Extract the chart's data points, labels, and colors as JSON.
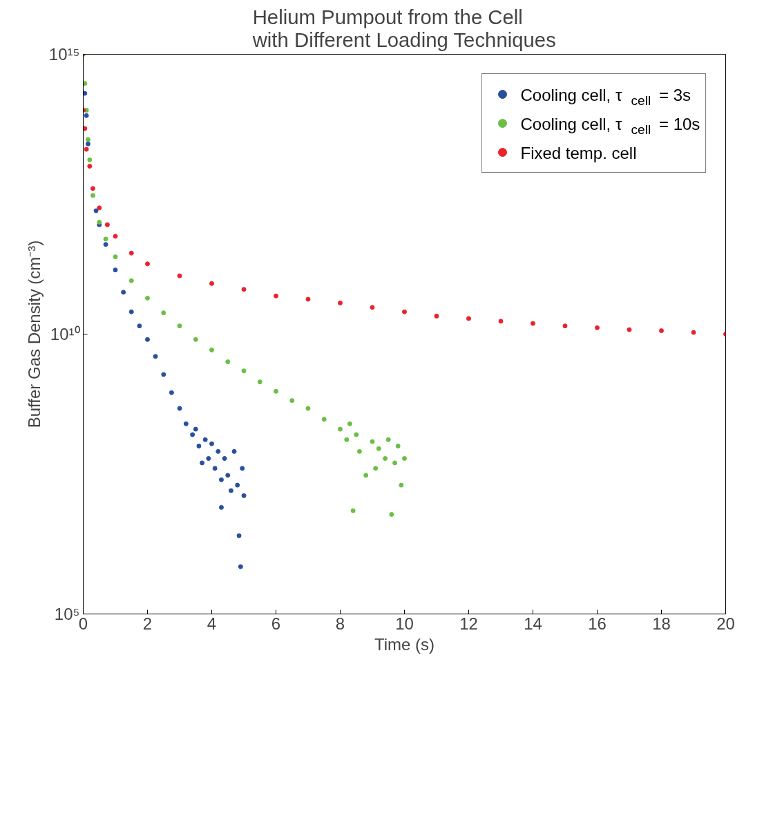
{
  "chart_data": {
    "type": "scatter",
    "title": "Helium Pumpout from the Cell\nwith Different Loading Techniques",
    "xlabel": "Time (s)",
    "ylabel": "Buffer Gas Density (cm⁻³)",
    "xlim": [
      0,
      20
    ],
    "xticks": [
      0,
      2,
      4,
      6,
      8,
      10,
      12,
      14,
      16,
      18,
      20
    ],
    "ylim": [
      100000.0,
      1000000000000000.0
    ],
    "yticks": [
      {
        "value": 100000.0,
        "label": "10⁵"
      },
      {
        "value": 10000000000.0,
        "label": "10¹⁰"
      },
      {
        "value": 1000000000000000.0,
        "label": "10¹⁵"
      }
    ],
    "log": "y",
    "grid": false,
    "legend": "top right",
    "marker": "circle",
    "series": [
      {
        "name": "Cooling cell, τ$_{cell}$ = 3s",
        "color": "#2a4f9f",
        "x": [
          0.05,
          0.1,
          0.15,
          0.4,
          0.5,
          0.7,
          1.0,
          1.25,
          1.5,
          1.75,
          2.0,
          2.25,
          2.5,
          2.75,
          3.0,
          3.2,
          3.4,
          3.5,
          3.6,
          3.7,
          3.8,
          3.9,
          4.0,
          4.1,
          4.2,
          4.3,
          4.4,
          4.5,
          4.6,
          4.7,
          4.8,
          4.85,
          4.9,
          5.0,
          4.95,
          4.3
        ],
        "values": [
          200000000000000.0,
          80000000000000.0,
          25000000000000.0,
          1600000000000.0,
          900000000000.0,
          400000000000.0,
          140000000000.0,
          56000000000.0,
          25000000000.0,
          14000000000.0,
          8000000000.0,
          4000000000.0,
          1900000000.0,
          900000000.0,
          470000000.0,
          250000000.0,
          160000000.0,
          200000000.0,
          100000000.0,
          50000000.0,
          130000000.0,
          60000000.0,
          110000000.0,
          40000000.0,
          80000000.0,
          25000000.0,
          60000000.0,
          30000000.0,
          16000000.0,
          80000000.0,
          20000000.0,
          2500000.0,
          700000.0,
          13000000.0,
          40000000.0,
          8000000.0
        ]
      },
      {
        "name": "Cooling cell, τ$_{cell}$ = 10s",
        "color": "#6abf45",
        "x": [
          0,
          0.05,
          0.1,
          0.15,
          0.2,
          0.3,
          0.5,
          0.7,
          1,
          1.5,
          2,
          2.5,
          3,
          3.5,
          4,
          4.5,
          5,
          5.5,
          6,
          6.5,
          7,
          7.5,
          8,
          8.2,
          8.3,
          8.4,
          8.5,
          8.6,
          8.8,
          9.0,
          9.1,
          9.2,
          9.4,
          9.5,
          9.6,
          9.7,
          9.8,
          9.9,
          10
        ],
        "values": [
          1000000000000000.0,
          300000000000000.0,
          100000000000000.0,
          30000000000000.0,
          13000000000000.0,
          3000000000000.0,
          1000000000000.0,
          500000000000.0,
          240000000000.0,
          90000000000.0,
          44000000000.0,
          24000000000.0,
          14000000000.0,
          8000000000.0,
          5200000000.0,
          3200000000.0,
          2200000000.0,
          1400000000.0,
          950000000.0,
          650000000.0,
          470000000.0,
          300000000.0,
          200000000.0,
          130000000.0,
          250000000.0,
          7000000.0,
          160000000.0,
          80000000.0,
          30000000.0,
          120000000.0,
          40000000.0,
          90000000.0,
          60000000.0,
          130000000.0,
          6000000.0,
          50000000.0,
          100000000.0,
          20000000.0,
          60000000.0
        ]
      },
      {
        "name": "Fixed temp. cell",
        "color": "#e8242a",
        "x": [
          0,
          0.05,
          0.1,
          0.2,
          0.3,
          0.5,
          0.75,
          1,
          1.5,
          2,
          3,
          4,
          5,
          6,
          7,
          8,
          9,
          10,
          11,
          12,
          13,
          14,
          15,
          16,
          17,
          18,
          19,
          20
        ],
        "values": [
          100000000000000.0,
          47000000000000.0,
          20000000000000.0,
          10000000000000.0,
          4000000000000.0,
          1800000000000.0,
          900000000000.0,
          560000000000.0,
          280000000000.0,
          180000000000.0,
          110000000000.0,
          80000000000.0,
          63000000000.0,
          48000000000.0,
          42000000000.0,
          36000000000.0,
          30000000000.0,
          25000000000.0,
          21000000000.0,
          19000000000.0,
          17000000000.0,
          15500000000.0,
          14000000000.0,
          13000000000.0,
          12000000000.0,
          11500000000.0,
          10700000000.0,
          10000000000.0
        ]
      }
    ]
  }
}
